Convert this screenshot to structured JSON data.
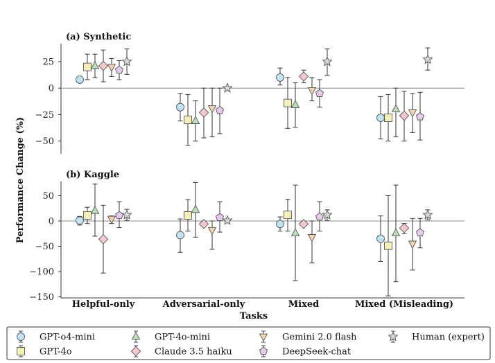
{
  "chart_data": {
    "type": "scatter",
    "ylabel": "Performance Change (%)",
    "xlabel": "Tasks",
    "categories": [
      "Helpful-only",
      "Adversarial-only",
      "Mixed",
      "Mixed (Misleading)"
    ],
    "series_meta": [
      {
        "name": "GPT-o4-mini",
        "marker": "circle",
        "color": "#bfe3f3"
      },
      {
        "name": "GPT-4o",
        "marker": "square",
        "color": "#f6f0b8"
      },
      {
        "name": "GPT-4o-mini",
        "marker": "triangle-up",
        "color": "#b9e0b9"
      },
      {
        "name": "Claude 3.5 haiku",
        "marker": "diamond",
        "color": "#f6c9cf"
      },
      {
        "name": "Gemini 2.0 flash",
        "marker": "triangle-down",
        "color": "#f7d2ae"
      },
      {
        "name": "DeepSeek-chat",
        "marker": "pentagon",
        "color": "#e7c9ee"
      },
      {
        "name": "Human (expert)",
        "marker": "star",
        "color": "#d6d6d6"
      }
    ],
    "panels": [
      {
        "title": "(a) Synthetic",
        "ylim": [
          -62,
          42
        ],
        "yticks": [
          25,
          0,
          -25,
          -50
        ],
        "series": [
          {
            "name": "GPT-o4-mini",
            "values": [
              8,
              -18,
              10,
              -28
            ],
            "err": [
              [
                5,
                11
              ],
              [
                -31,
                -5
              ],
              [
                3,
                19
              ],
              [
                -48,
                -8
              ]
            ]
          },
          {
            "name": "GPT-4o",
            "values": [
              20,
              -30,
              -14,
              -28
            ],
            "err": [
              [
                8,
                32
              ],
              [
                -54,
                -6
              ],
              [
                -38,
                10
              ],
              [
                -50,
                -6
              ]
            ]
          },
          {
            "name": "GPT-4o-mini",
            "values": [
              21,
              -31,
              -16,
              -20
            ],
            "err": [
              [
                10,
                32
              ],
              [
                -50,
                -12
              ],
              [
                -37,
                5
              ],
              [
                -46,
                0
              ]
            ]
          },
          {
            "name": "Claude 3.5 haiku",
            "values": [
              21,
              -23,
              11,
              -26
            ],
            "err": [
              [
                6,
                36
              ],
              [
                -47,
                0
              ],
              [
                5,
                17
              ],
              [
                -50,
                -3
              ]
            ]
          },
          {
            "name": "Gemini 2.0 flash",
            "values": [
              20,
              -19,
              -2,
              -23
            ],
            "err": [
              [
                11,
                28
              ],
              [
                -46,
                0
              ],
              [
                -12,
                10
              ],
              [
                -42,
                -5
              ]
            ]
          },
          {
            "name": "DeepSeek-chat",
            "values": [
              17,
              -21,
              -5,
              -27
            ],
            "err": [
              [
                8,
                26
              ],
              [
                -43,
                0
              ],
              [
                -18,
                8
              ],
              [
                -49,
                -4
              ]
            ]
          },
          {
            "name": "Human (expert)",
            "values": [
              25,
              0,
              25,
              27
            ],
            "err": [
              [
                13,
                37
              ],
              [
                0,
                0
              ],
              [
                12,
                37
              ],
              [
                17,
                38
              ]
            ]
          }
        ]
      },
      {
        "title": "(b) Kaggle",
        "ylim": [
          -152,
          78
        ],
        "yticks": [
          50,
          0,
          -50,
          -100,
          -150
        ],
        "series": [
          {
            "name": "GPT-o4-mini",
            "values": [
              1,
              -28,
              -6,
              -35
            ],
            "err": [
              [
                -8,
                9
              ],
              [
                -62,
                4
              ],
              [
                -20,
                8
              ],
              [
                -80,
                10
              ]
            ]
          },
          {
            "name": "GPT-4o",
            "values": [
              11,
              11,
              12,
              -49
            ],
            "err": [
              [
                -5,
                27
              ],
              [
                -20,
                42
              ],
              [
                -20,
                43
              ],
              [
                -148,
                50
              ]
            ]
          },
          {
            "name": "GPT-4o-mini",
            "values": [
              20,
              22,
              -24,
              -24
            ],
            "err": [
              [
                -30,
                73
              ],
              [
                -32,
                76
              ],
              [
                -118,
                71
              ],
              [
                -120,
                71
              ]
            ]
          },
          {
            "name": "Claude 3.5 haiku",
            "values": [
              -36,
              -6,
              -6,
              -14
            ],
            "err": [
              [
                -103,
                31
              ],
              [
                -8,
                0
              ],
              [
                -8,
                0
              ],
              [
                -25,
                -5
              ]
            ]
          },
          {
            "name": "Gemini 2.0 flash",
            "values": [
              4,
              -18,
              -32,
              -45
            ],
            "err": [
              [
                -5,
                10
              ],
              [
                -56,
                0
              ],
              [
                -83,
                0
              ],
              [
                -97,
                5
              ]
            ]
          },
          {
            "name": "DeepSeek-chat",
            "values": [
              11,
              7,
              8,
              -23
            ],
            "err": [
              [
                -13,
                38
              ],
              [
                -22,
                38
              ],
              [
                -20,
                38
              ],
              [
                -53,
                5
              ]
            ]
          },
          {
            "name": "Human (expert)",
            "values": [
              12,
              1,
              12,
              12
            ],
            "err": [
              [
                1,
                23
              ],
              [
                1,
                1
              ],
              [
                1,
                22
              ],
              [
                2,
                22
              ]
            ]
          }
        ]
      }
    ]
  }
}
